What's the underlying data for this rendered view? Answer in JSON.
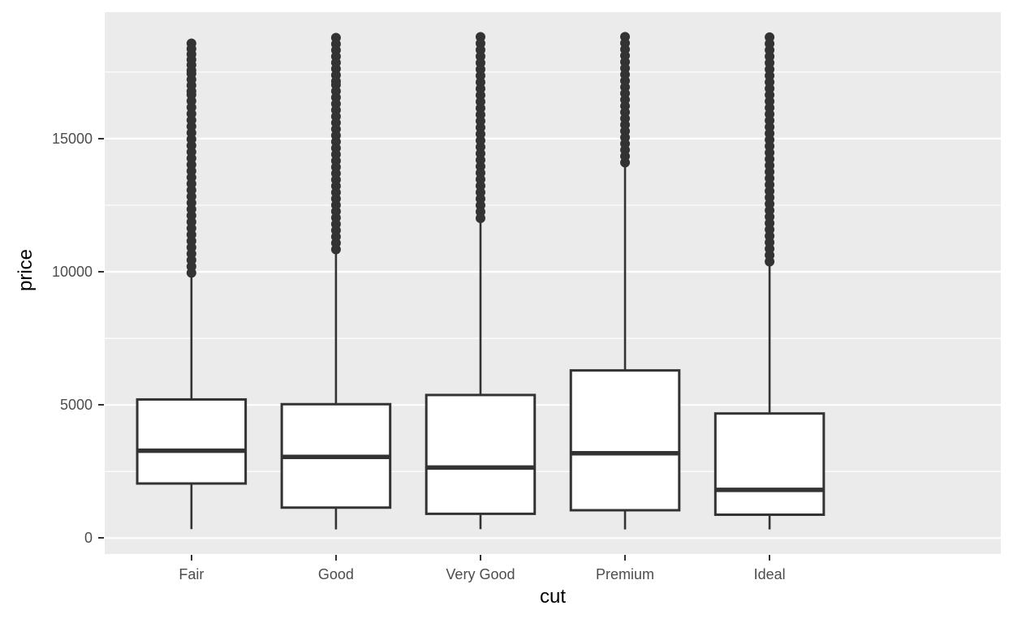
{
  "figure": {
    "background_color": "#FFFFFF",
    "panel_background_color": "#EBEBEB",
    "grid_color": "#FFFFFF",
    "box_stroke_color": "#333333",
    "box_fill_color": "#FFFFFF",
    "outlier_color": "#333333",
    "tick_label_color": "#4D4D4D",
    "axis_title_color": "#000000"
  },
  "chart_data": {
    "type": "boxplot",
    "title": "",
    "xlabel": "cut",
    "ylabel": "price",
    "categories": [
      "Fair",
      "Good",
      "Very Good",
      "Premium",
      "Ideal"
    ],
    "y_ticks": [
      0,
      5000,
      10000,
      15000
    ],
    "y_tick_labels": [
      "0",
      "5000",
      "10000",
      "15000"
    ],
    "y_minor_ticks": [
      2500,
      7500,
      12500,
      17500
    ],
    "ylim": [
      -599,
      19748
    ],
    "grid": true,
    "legend": "none",
    "series": [
      {
        "category": "Fair",
        "whisker_low": 337,
        "q1": 2050,
        "median": 3282,
        "q3": 5206,
        "whisker_high": 9930,
        "outlier_segments": [
          [
            9960,
            16650
          ],
          [
            16780,
            17440
          ],
          [
            17560,
            18574
          ]
        ]
      },
      {
        "category": "Good",
        "whisker_low": 327,
        "q1": 1145,
        "median": 3050,
        "q3": 5028,
        "whisker_high": 10820,
        "outlier_segments": [
          [
            10840,
            17020
          ],
          [
            17150,
            18788
          ]
        ]
      },
      {
        "category": "Very Good",
        "whisker_low": 336,
        "q1": 912,
        "median": 2648,
        "q3": 5373,
        "whisker_high": 11990,
        "outlier_segments": [
          [
            12010,
            18818
          ]
        ]
      },
      {
        "category": "Premium",
        "whisker_low": 326,
        "q1": 1046,
        "median": 3185,
        "q3": 6296,
        "whisker_high": 14080,
        "outlier_segments": [
          [
            14100,
            18823
          ]
        ]
      },
      {
        "category": "Ideal",
        "whisker_low": 326,
        "q1": 878,
        "median": 1810,
        "q3": 4679,
        "whisker_high": 10360,
        "outlier_segments": [
          [
            10380,
            18806
          ]
        ]
      }
    ]
  }
}
